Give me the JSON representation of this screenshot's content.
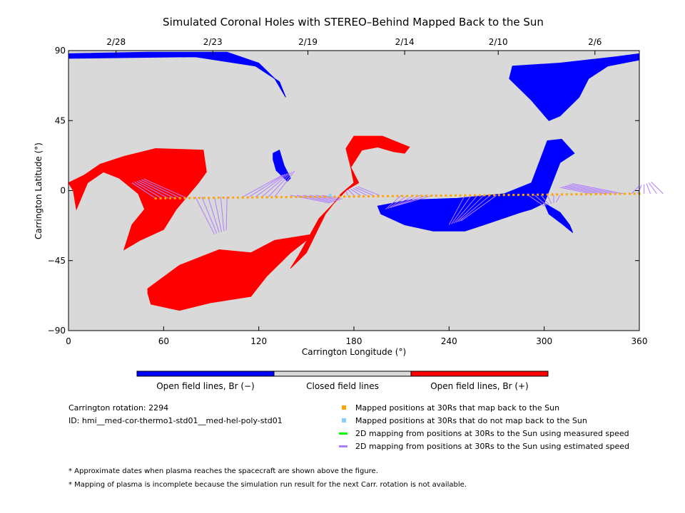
{
  "chart_data": {
    "type": "map",
    "title": "Simulated Coronal Holes with STEREO–Behind Mapped Back to the Sun",
    "xlabel": "Carrington Longitude (°)",
    "ylabel": "Carrington Latitude (°)",
    "xlim": [
      0,
      360
    ],
    "ylim": [
      -90,
      90
    ],
    "x_ticks": [
      "0",
      "60",
      "120",
      "180",
      "240",
      "300",
      "360"
    ],
    "y_ticks": [
      "90",
      "45",
      "0",
      "−45",
      "−90"
    ],
    "date_ticks": [
      {
        "label": "2/28",
        "lon": 30
      },
      {
        "label": "2/23",
        "lon": 91
      },
      {
        "label": "2/19",
        "lon": 151
      },
      {
        "label": "2/14",
        "lon": 212
      },
      {
        "label": "2/10",
        "lon": 271
      },
      {
        "label": "2/6",
        "lon": 332
      }
    ],
    "background_color": "#d9d9d9",
    "colors": {
      "negative": "#0000ff",
      "closed": "#d9d9d9",
      "positive": "#ff0000",
      "mapped": "#ffa500",
      "unmapped": "#87cefa",
      "measured": "#00ff00",
      "estimated": "#b07cff"
    },
    "coronal_holes": [
      {
        "polarity": "negative",
        "label": "north polar",
        "outline": [
          [
            0,
            88
          ],
          [
            50,
            89
          ],
          [
            100,
            89
          ],
          [
            120,
            82
          ],
          [
            130,
            72
          ],
          [
            137,
            60
          ],
          [
            133,
            70
          ],
          [
            118,
            80
          ],
          [
            80,
            86
          ],
          [
            0,
            85
          ]
        ]
      },
      {
        "polarity": "negative",
        "label": "north-east",
        "outline": [
          [
            280,
            80
          ],
          [
            310,
            82
          ],
          [
            345,
            86
          ],
          [
            360,
            88
          ],
          [
            360,
            84
          ],
          [
            340,
            80
          ],
          [
            328,
            72
          ],
          [
            322,
            60
          ],
          [
            310,
            48
          ],
          [
            303,
            45
          ],
          [
            292,
            58
          ],
          [
            278,
            72
          ]
        ]
      },
      {
        "polarity": "negative",
        "label": "small equatorial",
        "outline": [
          [
            129,
            24
          ],
          [
            133,
            26
          ],
          [
            136,
            16
          ],
          [
            140,
            8
          ],
          [
            138,
            6
          ],
          [
            131,
            13
          ],
          [
            129,
            20
          ]
        ]
      },
      {
        "polarity": "negative",
        "label": "equatorial belt",
        "outline": [
          [
            195,
            -10
          ],
          [
            215,
            -6
          ],
          [
            245,
            -5
          ],
          [
            275,
            -2
          ],
          [
            292,
            5
          ],
          [
            302,
            32
          ],
          [
            311,
            33
          ],
          [
            319,
            24
          ],
          [
            310,
            18
          ],
          [
            305,
            5
          ],
          [
            300,
            -8
          ],
          [
            292,
            -12
          ],
          [
            285,
            -14
          ],
          [
            262,
            -22
          ],
          [
            250,
            -26
          ],
          [
            230,
            -26
          ],
          [
            212,
            -22
          ],
          [
            197,
            -15
          ]
        ]
      },
      {
        "polarity": "negative",
        "label": "tail",
        "outline": [
          [
            300,
            -8
          ],
          [
            310,
            -14
          ],
          [
            316,
            -22
          ],
          [
            318,
            -27
          ],
          [
            312,
            -22
          ],
          [
            303,
            -15
          ]
        ]
      },
      {
        "polarity": "positive",
        "label": "west",
        "outline": [
          [
            0,
            5
          ],
          [
            10,
            10
          ],
          [
            20,
            17
          ],
          [
            35,
            22
          ],
          [
            55,
            27
          ],
          [
            85,
            26
          ],
          [
            87,
            12
          ],
          [
            82,
            5
          ],
          [
            68,
            -12
          ],
          [
            60,
            -25
          ],
          [
            45,
            -32
          ],
          [
            35,
            -38
          ],
          [
            40,
            -22
          ],
          [
            48,
            -12
          ],
          [
            44,
            -2
          ],
          [
            32,
            8
          ],
          [
            22,
            12
          ],
          [
            12,
            5
          ],
          [
            5,
            -12
          ],
          [
            3,
            0
          ]
        ]
      },
      {
        "polarity": "positive",
        "label": "south",
        "outline": [
          [
            50,
            -63
          ],
          [
            70,
            -48
          ],
          [
            95,
            -38
          ],
          [
            115,
            -40
          ],
          [
            130,
            -32
          ],
          [
            155,
            -28
          ],
          [
            140,
            -40
          ],
          [
            125,
            -55
          ],
          [
            115,
            -68
          ],
          [
            90,
            -72
          ],
          [
            70,
            -77
          ],
          [
            52,
            -73
          ],
          [
            50,
            -66
          ]
        ]
      },
      {
        "polarity": "positive",
        "label": "stream",
        "outline": [
          [
            175,
            0
          ],
          [
            178,
            2
          ],
          [
            183,
            5
          ],
          [
            178,
            15
          ],
          [
            175,
            27
          ],
          [
            180,
            35
          ],
          [
            198,
            35
          ],
          [
            210,
            30
          ],
          [
            215,
            28
          ],
          [
            212,
            24
          ],
          [
            205,
            25
          ],
          [
            195,
            28
          ],
          [
            185,
            26
          ],
          [
            178,
            15
          ],
          [
            180,
            5
          ],
          [
            172,
            -2
          ],
          [
            162,
            -15
          ],
          [
            150,
            -40
          ],
          [
            140,
            -50
          ],
          [
            145,
            -42
          ],
          [
            158,
            -18
          ]
        ]
      }
    ],
    "mapped_positions_30Rs": {
      "lon_start": 55,
      "lon_end": 360,
      "lat_start": -5,
      "lat_end": -2,
      "color": "orange"
    },
    "unmapped_positions": [
      {
        "lon": 165,
        "lat": -3
      }
    ],
    "legend": [
      {
        "label": "Open field lines, Br (−)",
        "color": "#0000ff"
      },
      {
        "label": "Closed field lines",
        "color": "#d9d9d9"
      },
      {
        "label": "Open field lines, Br (+)",
        "color": "#ff0000"
      }
    ]
  },
  "info": {
    "rotation": "Carrington rotation: 2294",
    "id": "ID: hmi__med-cor-thermo1-std01__med-hel-poly-std01"
  },
  "markers": [
    {
      "label": "Mapped positions at 30Rs that map back to the Sun",
      "color": "#ffa500",
      "kind": "square"
    },
    {
      "label": "Mapped positions at 30Rs that do not map back to the Sun",
      "color": "#87cefa",
      "kind": "square"
    },
    {
      "label": "2D mapping from positions at 30Rs to the Sun using measured speed",
      "color": "#00ff00",
      "kind": "line"
    },
    {
      "label": "2D mapping from positions at 30Rs to the Sun using estimated speed",
      "color": "#b07cff",
      "kind": "line"
    }
  ],
  "notes": [
    "* Approximate dates when plasma reaches the spacecraft are shown above the figure.",
    "* Mapping of plasma is incomplete because the simulation run result for the next Carr. rotation is not available."
  ]
}
